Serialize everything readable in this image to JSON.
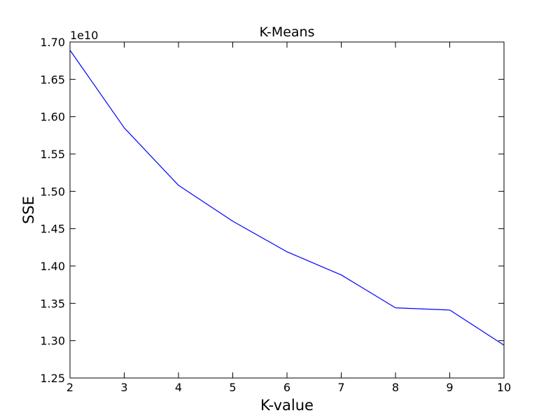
{
  "chart_data": {
    "type": "line",
    "title": "K-Means",
    "xlabel": "K-value",
    "ylabel": "SSE",
    "y_offset_label": "1e10",
    "x": [
      2,
      3,
      4,
      5,
      6,
      7,
      8,
      9,
      10
    ],
    "series": [
      {
        "values": [
          1.689,
          1.585,
          1.508,
          1.46,
          1.419,
          1.388,
          1.344,
          1.341,
          1.294
        ],
        "color": "#0000ff"
      }
    ],
    "xlim": [
      2,
      10
    ],
    "ylim": [
      1.25,
      1.7
    ],
    "x_ticks": [
      2,
      3,
      4,
      5,
      6,
      7,
      8,
      9,
      10
    ],
    "x_tick_labels": [
      "2",
      "3",
      "4",
      "5",
      "6",
      "7",
      "8",
      "9",
      "10"
    ],
    "y_ticks": [
      1.25,
      1.3,
      1.35,
      1.4,
      1.45,
      1.5,
      1.55,
      1.6,
      1.65,
      1.7
    ],
    "y_tick_labels": [
      "1.25",
      "1.30",
      "1.35",
      "1.40",
      "1.45",
      "1.50",
      "1.55",
      "1.60",
      "1.65",
      "1.70"
    ],
    "grid": false,
    "legend": "none"
  }
}
